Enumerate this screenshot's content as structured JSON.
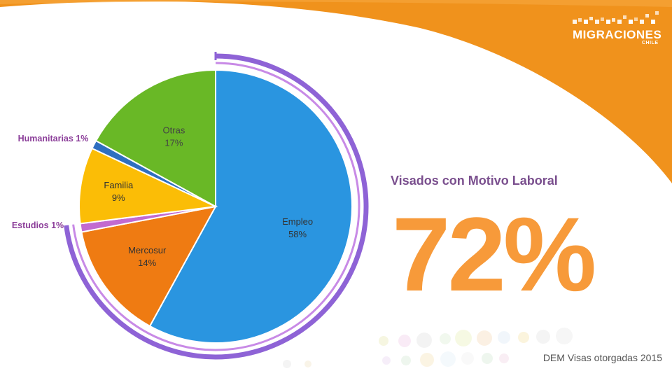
{
  "brand": {
    "name": "MIGRACIONES",
    "sub": "CHILE",
    "colors": {
      "orange": "#f0921c",
      "white": "#ffffff"
    }
  },
  "highlight": {
    "title": "Visados con Motivo Laboral",
    "value": "72%",
    "color": "#f79a3a"
  },
  "source": "DEM Visas otorgadas 2015",
  "chart_data": {
    "type": "pie",
    "title": "",
    "slices": [
      {
        "label": "Empleo",
        "value": 58,
        "pct": "58%",
        "color": "#2a95e0"
      },
      {
        "label": "Mercosur",
        "value": 14,
        "pct": "14%",
        "color": "#ef7b12"
      },
      {
        "label": "Estudios",
        "value": 1,
        "pct": "1%",
        "color": "#c26ad0"
      },
      {
        "label": "Familia",
        "value": 9,
        "pct": "9%",
        "color": "#fbbd06"
      },
      {
        "label": "Humanitarias",
        "value": 1,
        "pct": "1%",
        "color": "#2e6fc0"
      },
      {
        "label": "Otras",
        "value": 17,
        "pct": "17%",
        "color": "#69b826"
      }
    ],
    "highlight_arc": {
      "slices": [
        "Empleo",
        "Mercosur",
        "Estudios"
      ],
      "total_pct": 72
    }
  }
}
